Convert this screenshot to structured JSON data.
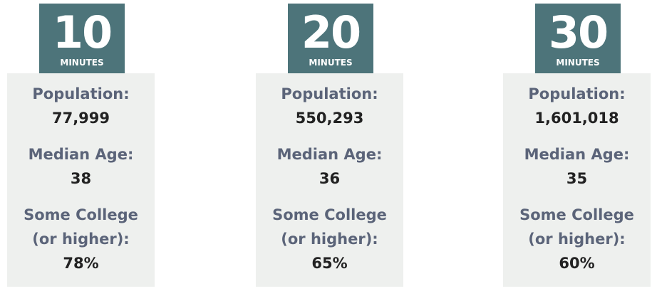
{
  "cards": [
    {
      "number": "10",
      "unit": "MINUTES",
      "stats": [
        {
          "label": "Population:",
          "value": "77,999"
        },
        {
          "label": "Median Age:",
          "value": "38"
        },
        {
          "label": "Some College (or higher):",
          "value": "78%"
        }
      ]
    },
    {
      "number": "20",
      "unit": "MINUTES",
      "stats": [
        {
          "label": "Population:",
          "value": "550,293"
        },
        {
          "label": "Median Age:",
          "value": "36"
        },
        {
          "label": "Some College (or higher):",
          "value": "65%"
        }
      ]
    },
    {
      "number": "30",
      "unit": "MINUTES",
      "stats": [
        {
          "label": "Population:",
          "value": "1,601,018"
        },
        {
          "label": "Median Age:",
          "value": "35"
        },
        {
          "label": "Some College (or higher):",
          "value": "60%"
        }
      ]
    }
  ]
}
